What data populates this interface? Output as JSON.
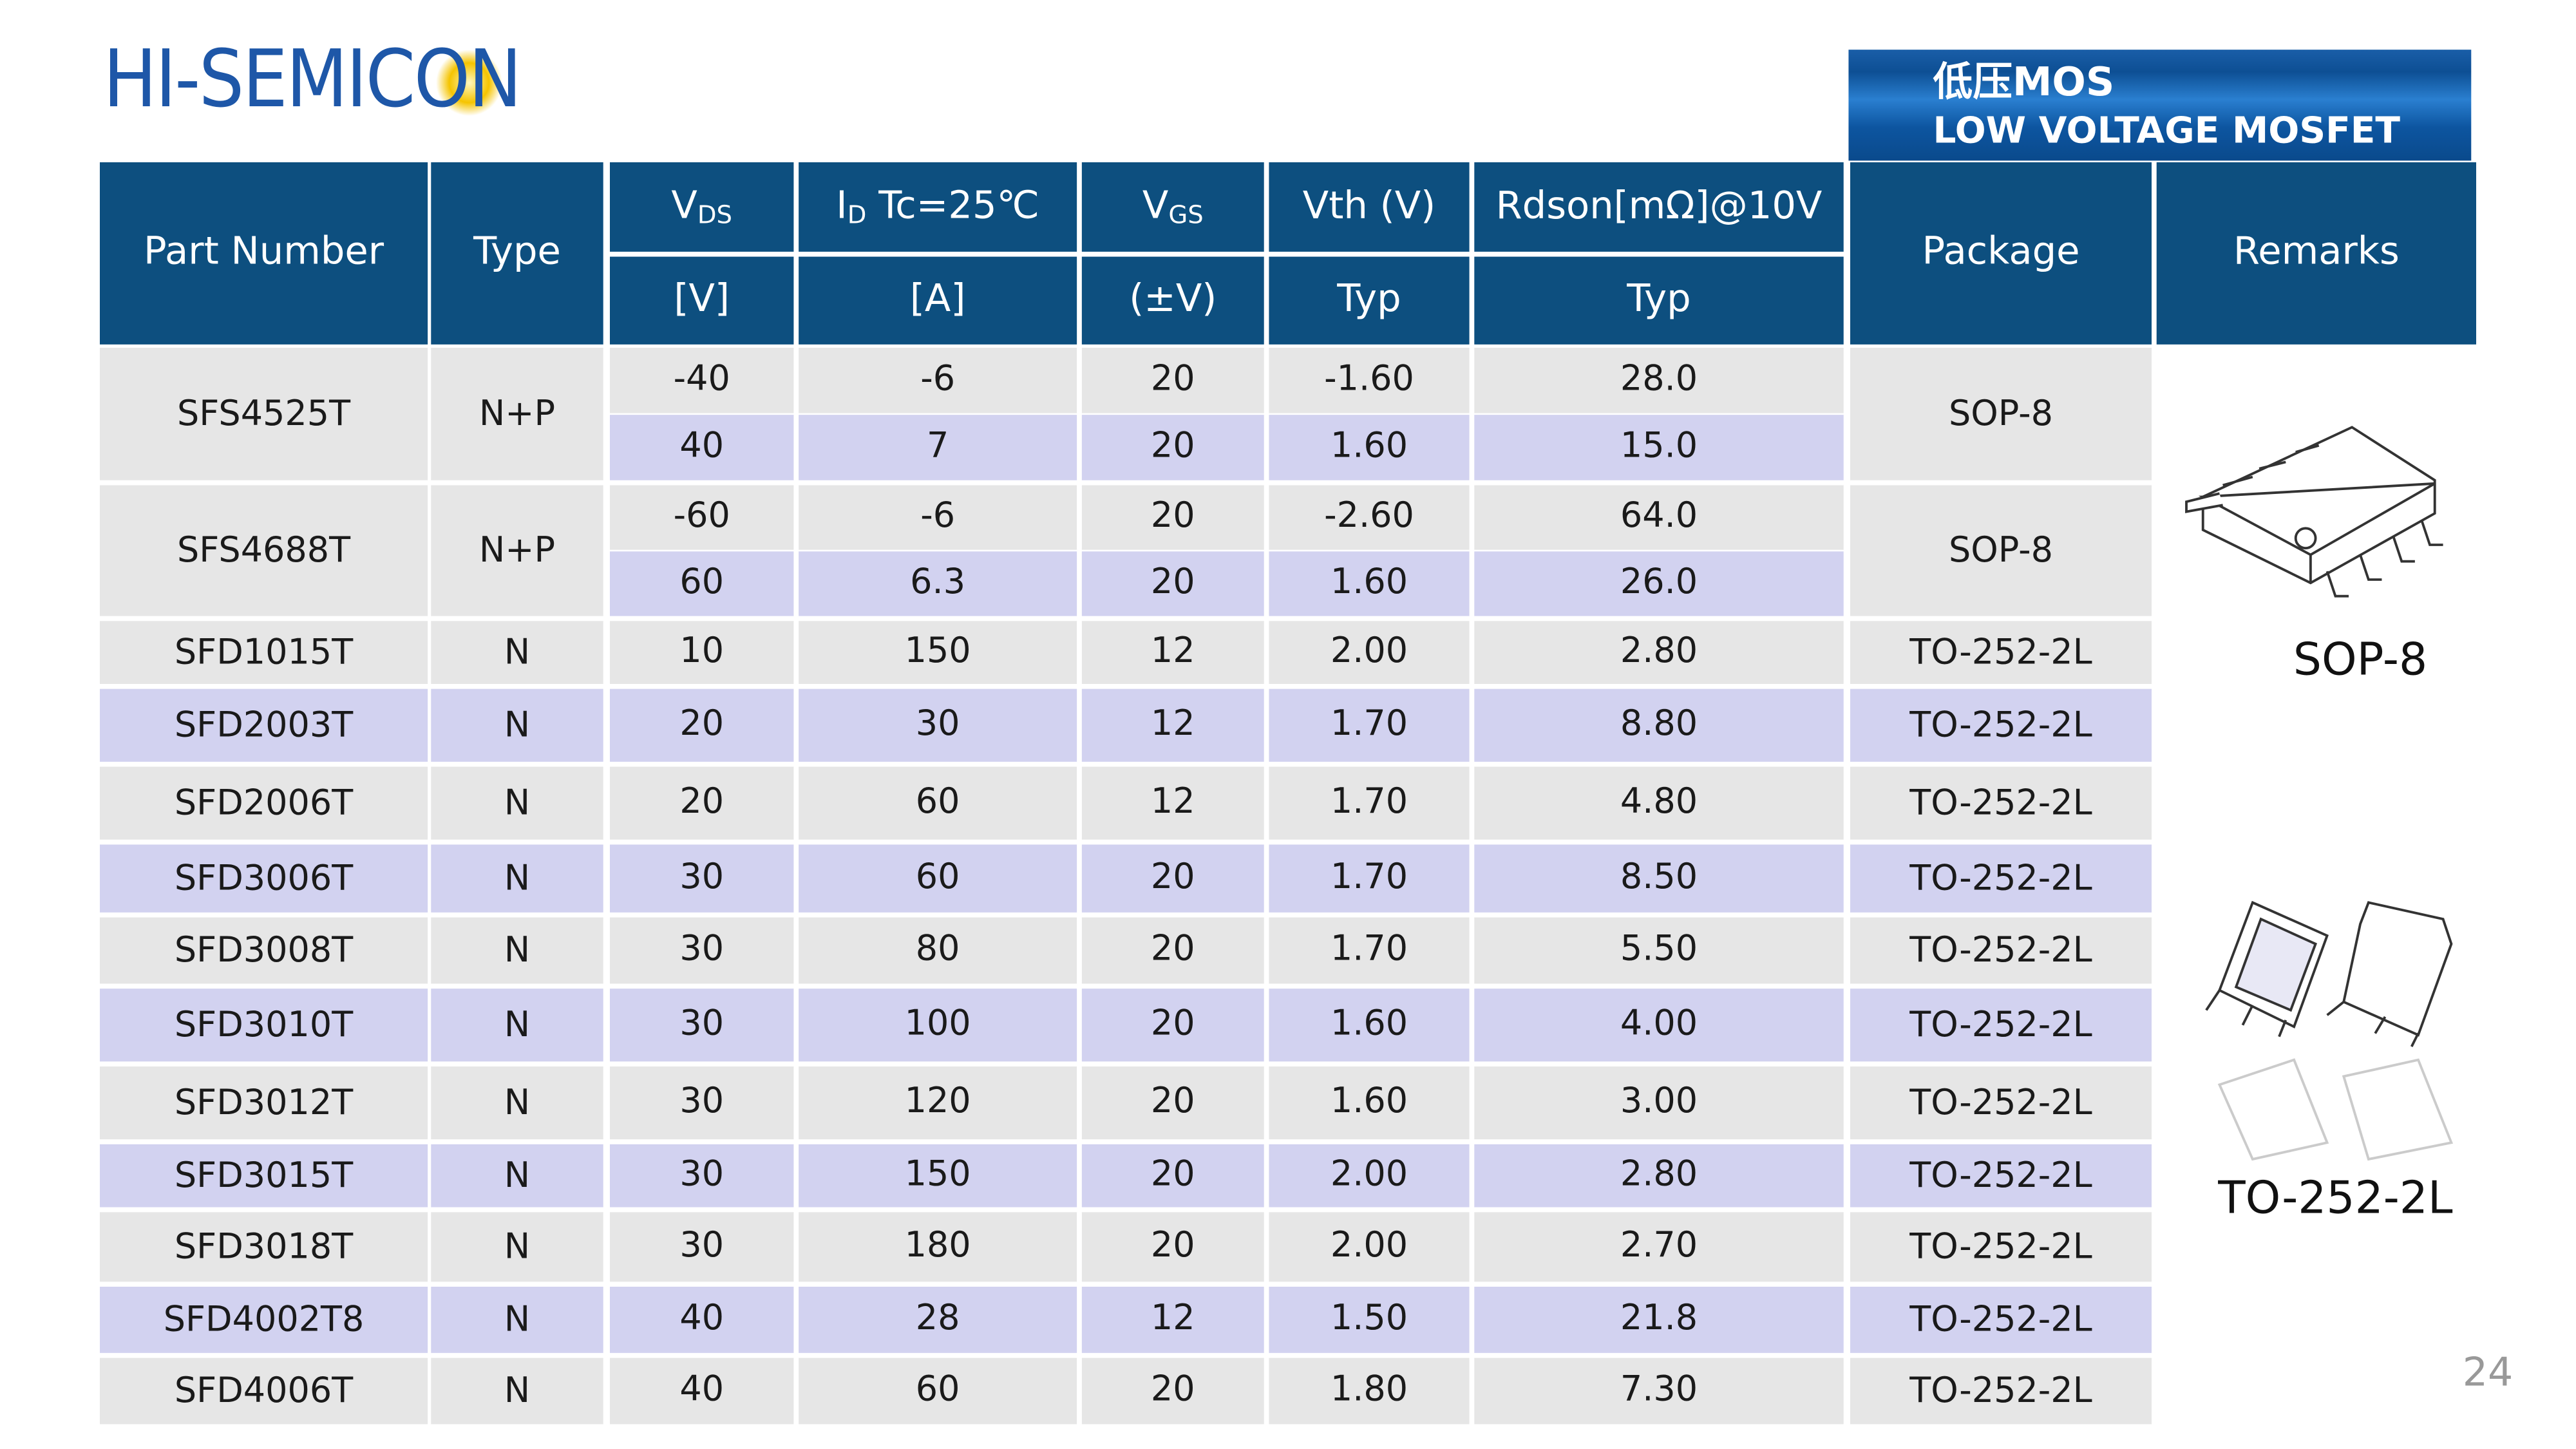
{
  "header": {
    "logo": "HI-SEMICON",
    "badge_title": "低压MOS",
    "badge_subtitle": "LOW VOLTAGE MOSFET"
  },
  "table": {
    "columns": [
      {
        "top": "Part Number"
      },
      {
        "top": "Type"
      },
      {
        "main": "V",
        "sub": "DS",
        "bottom": "[V]"
      },
      {
        "main": "I",
        "sub": "D",
        "rest": " Tc=25℃",
        "bottom": "[A]"
      },
      {
        "main": "V",
        "sub": "GS",
        "bottom": "(±V)"
      },
      {
        "top": "Vth (V)",
        "bottom": "Typ"
      },
      {
        "top": "Rdson[mΩ]@10V",
        "bottom": "Typ"
      },
      {
        "top": "Package"
      },
      {
        "top": "Remarks"
      }
    ],
    "rows": [
      {
        "part": "SFS4525T",
        "type": "N+P",
        "package": "SOP-8",
        "sub": [
          [
            "-40",
            "-6",
            "20",
            "-1.60",
            "28.0"
          ],
          [
            "40",
            "7",
            "20",
            "1.60",
            "15.0"
          ]
        ]
      },
      {
        "part": "SFS4688T",
        "type": "N+P",
        "package": "SOP-8",
        "sub": [
          [
            "-60",
            "-6",
            "20",
            "-2.60",
            "64.0"
          ],
          [
            "60",
            "6.3",
            "20",
            "1.60",
            "26.0"
          ]
        ]
      },
      {
        "part": "SFD1015T",
        "type": "N",
        "package": "TO-252-2L",
        "sub": [
          [
            "10",
            "150",
            "12",
            "2.00",
            "2.80"
          ]
        ]
      },
      {
        "part": "SFD2003T",
        "type": "N",
        "package": "TO-252-2L",
        "sub": [
          [
            "20",
            "30",
            "12",
            "1.70",
            "8.80"
          ]
        ]
      },
      {
        "part": "SFD2006T",
        "type": "N",
        "package": "TO-252-2L",
        "sub": [
          [
            "20",
            "60",
            "12",
            "1.70",
            "4.80"
          ]
        ]
      },
      {
        "part": "SFD3006T",
        "type": "N",
        "package": "TO-252-2L",
        "sub": [
          [
            "30",
            "60",
            "20",
            "1.70",
            "8.50"
          ]
        ]
      },
      {
        "part": "SFD3008T",
        "type": "N",
        "package": "TO-252-2L",
        "sub": [
          [
            "30",
            "80",
            "20",
            "1.70",
            "5.50"
          ]
        ]
      },
      {
        "part": "SFD3010T",
        "type": "N",
        "package": "TO-252-2L",
        "sub": [
          [
            "30",
            "100",
            "20",
            "1.60",
            "4.00"
          ]
        ]
      },
      {
        "part": "SFD3012T",
        "type": "N",
        "package": "TO-252-2L",
        "sub": [
          [
            "30",
            "120",
            "20",
            "1.60",
            "3.00"
          ]
        ]
      },
      {
        "part": "SFD3015T",
        "type": "N",
        "package": "TO-252-2L",
        "sub": [
          [
            "30",
            "150",
            "20",
            "2.00",
            "2.80"
          ]
        ]
      },
      {
        "part": "SFD3018T",
        "type": "N",
        "package": "TO-252-2L",
        "sub": [
          [
            "30",
            "180",
            "20",
            "2.00",
            "2.70"
          ]
        ]
      },
      {
        "part": "SFD4002T8",
        "type": "N",
        "package": "TO-252-2L",
        "sub": [
          [
            "40",
            "28",
            "12",
            "1.50",
            "21.8"
          ]
        ]
      },
      {
        "part": "SFD4006T",
        "type": "N",
        "package": "TO-252-2L",
        "sub": [
          [
            "40",
            "60",
            "20",
            "1.80",
            "7.30"
          ]
        ]
      }
    ]
  },
  "images": {
    "sop_label": "SOP-8",
    "to_label": "TO-252-2L"
  },
  "page_number": "24"
}
